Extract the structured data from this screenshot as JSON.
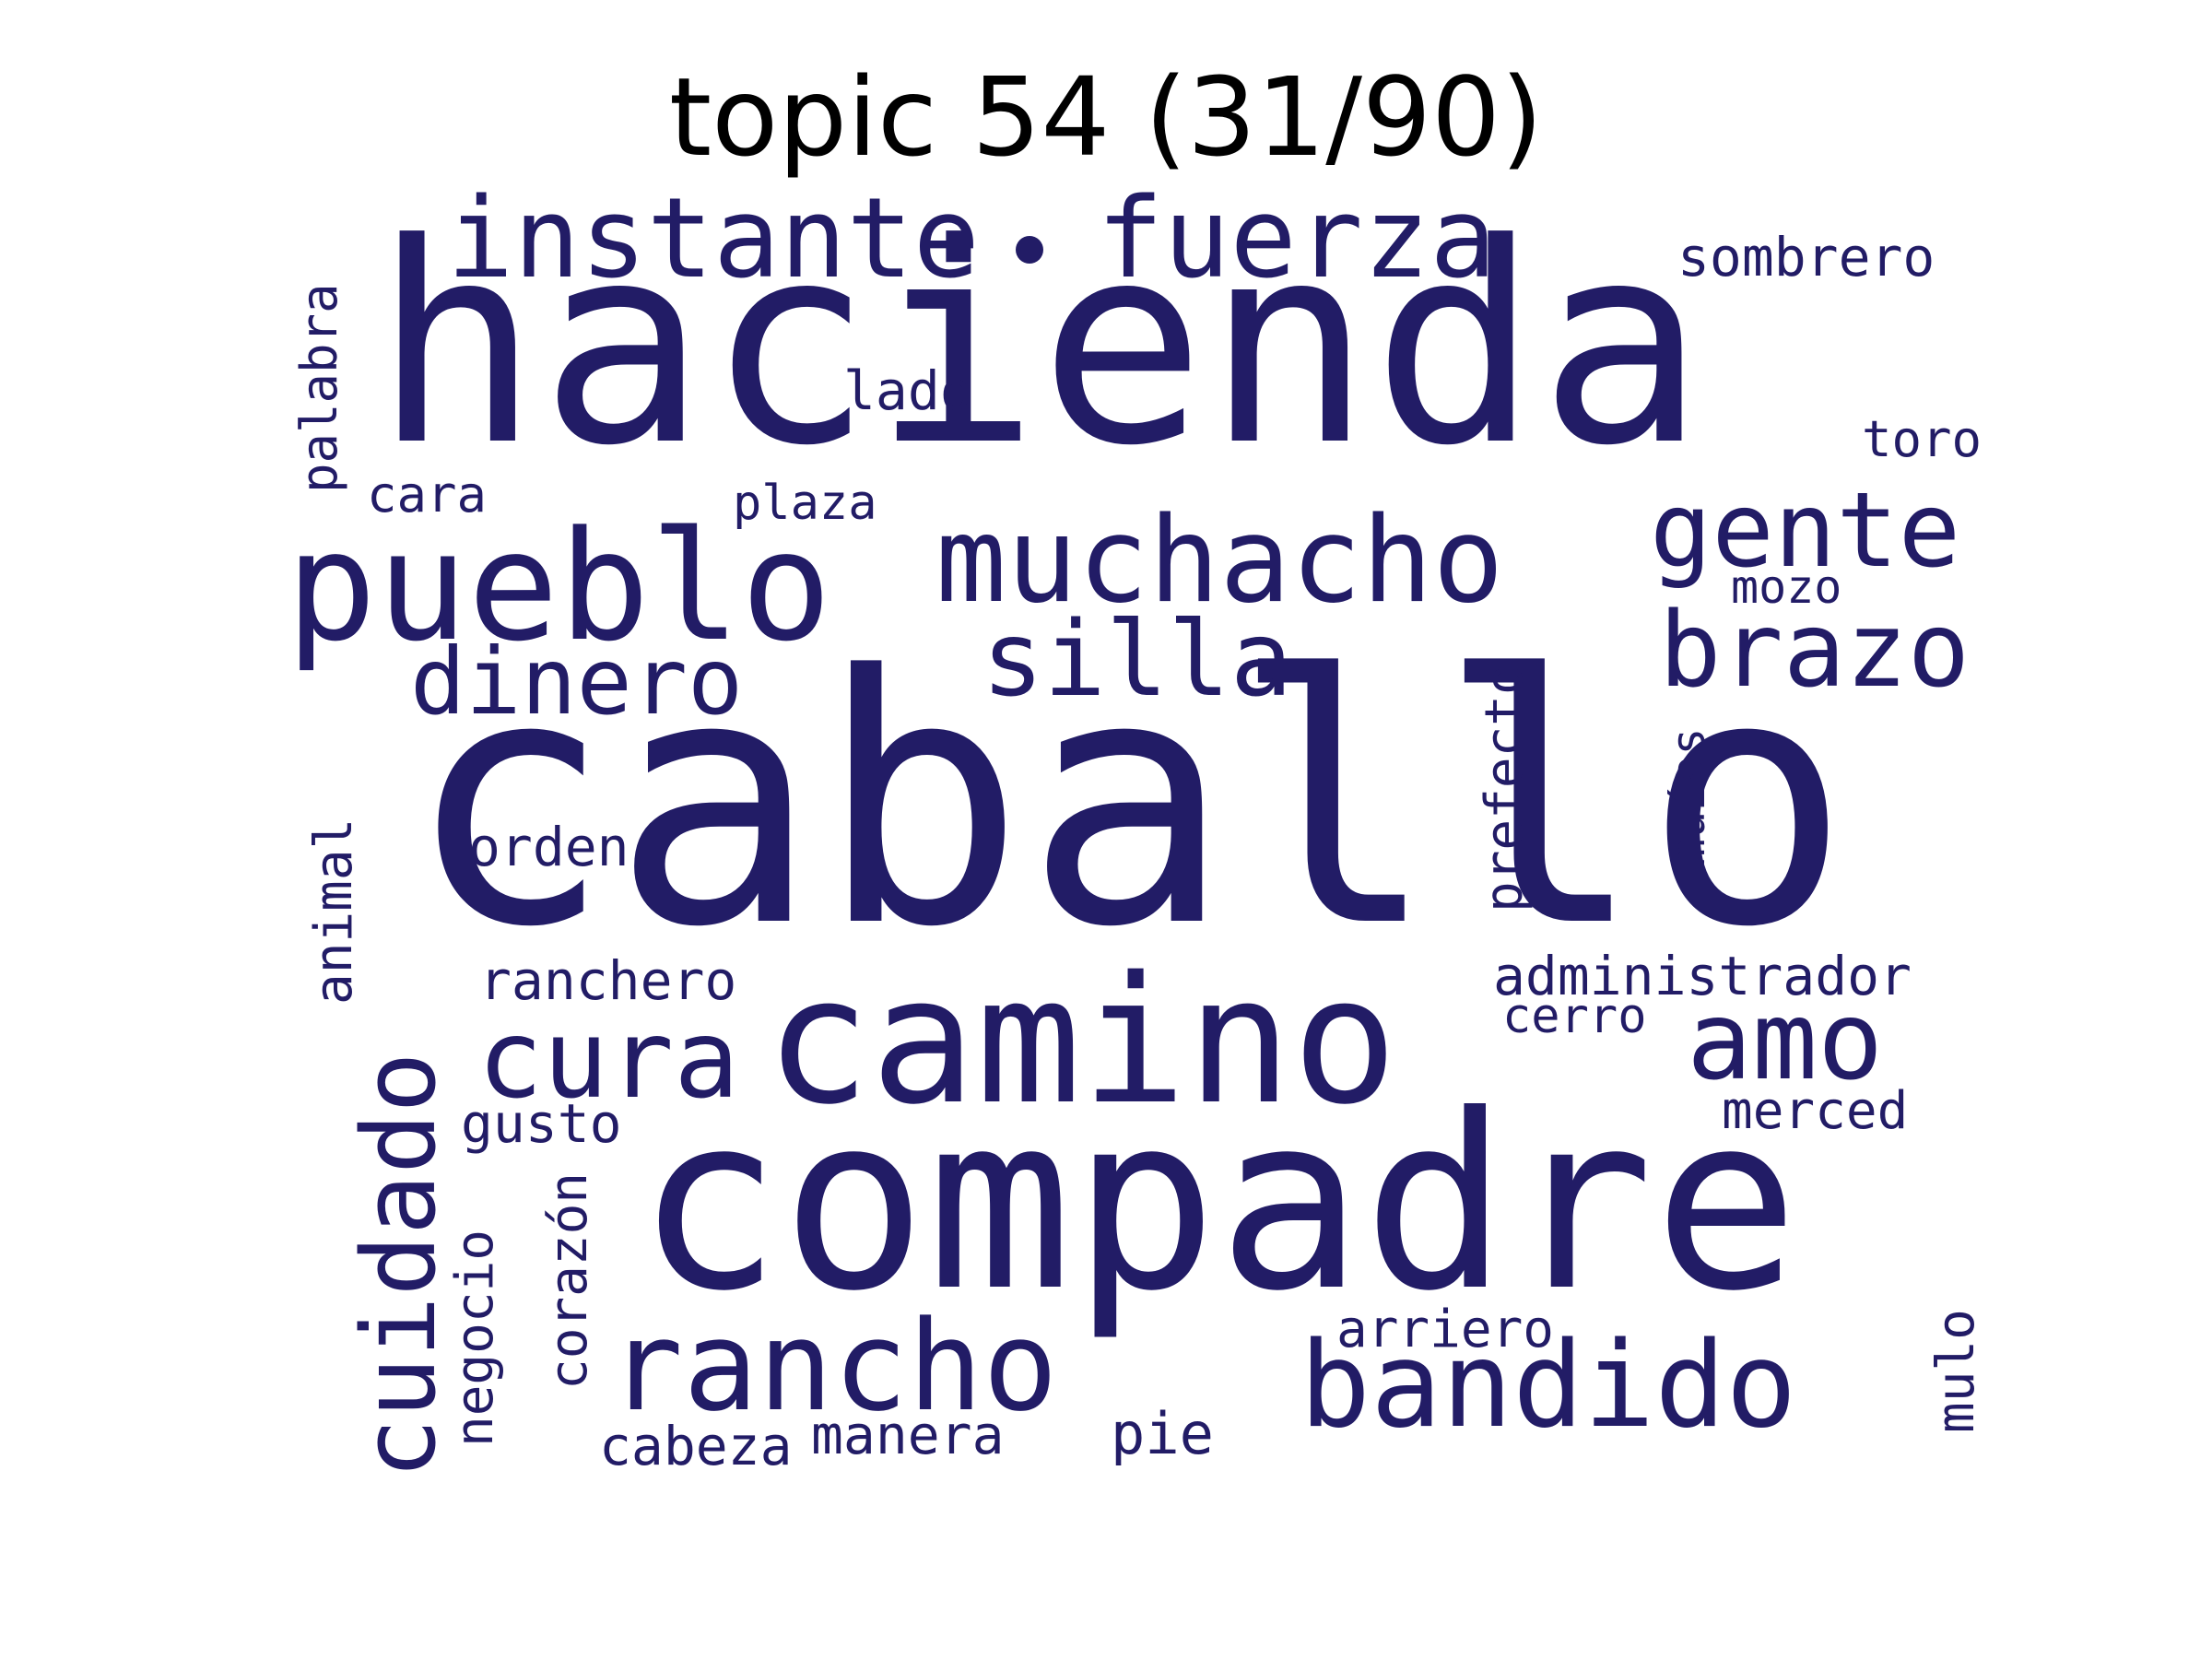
{
  "title": "topic 54 (31/90)",
  "word_color": "#221c66",
  "words": {
    "caballo": "caballo",
    "hacienda": "hacienda",
    "compadre": "compadre",
    "camino": "camino",
    "pueblo": "pueblo",
    "muchacho": "muchacho",
    "instante": "instante",
    "fuerza": "fuerza",
    "rancho": "rancho",
    "bandido": "bandido",
    "cuidado": "cuidado",
    "cura": "cura",
    "amo": "amo",
    "gente": "gente",
    "brazo": "brazo",
    "silla": "silla",
    "dinero": "dinero",
    "sombrero": "sombrero",
    "lado": "lado",
    "toro": "toro",
    "palabra": "palabra",
    "cara": "cara",
    "plaza": "plaza",
    "mozo": "mozo",
    "prefecto": "prefecto",
    "muias": "muías",
    "orden": "orden",
    "animal": "animal",
    "ranchero": "ranchero",
    "administrador": "administrador",
    "cerro": "cerro",
    "gusto": "gusto",
    "merced": "merced",
    "negocio": "negocio",
    "corazon": "corazón",
    "arriero": "arriero",
    "mulo": "mulo",
    "cabeza": "cabeza",
    "manera": "manera",
    "pie": "pie"
  }
}
